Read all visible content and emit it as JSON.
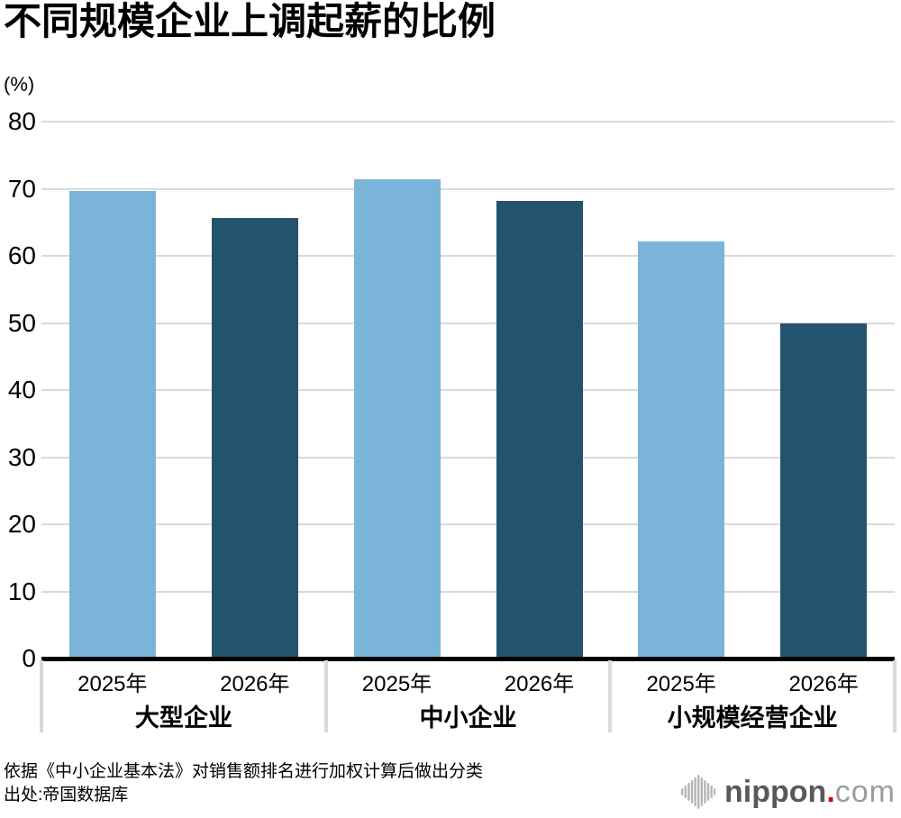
{
  "title": "不同规模企业上调起薪的比例",
  "unit_label": "(%)",
  "chart_data": {
    "type": "bar",
    "title": "不同规模企业上调起薪的比例",
    "ylabel": "(%)",
    "categories": [
      "大型企业",
      "中小企业",
      "小规模经营企业"
    ],
    "series": [
      {
        "name": "2025年",
        "values": [
          69.6,
          71.4,
          62.2
        ],
        "color": "#7ab4d9"
      },
      {
        "name": "2026年",
        "values": [
          65.6,
          68.2,
          50.0
        ],
        "color": "#24536f"
      }
    ],
    "bar_tick_labels": [
      "2025年",
      "2026年"
    ],
    "ylim": [
      0,
      80
    ],
    "ytick_step": 10,
    "yticks": [
      0,
      10,
      20,
      30,
      40,
      50,
      60,
      70,
      80
    ],
    "grid": true,
    "legend_position": "none"
  },
  "footer": {
    "note": "依据《中小企业基本法》对销售额排名进行加权计算后做出分类",
    "source": "出处:帝国数据库"
  },
  "logo": {
    "brand_bold": "nippon",
    "brand_dot": ".",
    "brand_rest": "com",
    "bold_color": "#595959",
    "dot_color": "#dc000c",
    "rest_color": "#9d9d9d",
    "icon_color": "#b5b5b5"
  },
  "colors": {
    "background": "#ffffff",
    "text": "#000000",
    "gridline": "#d9d9d9",
    "baseline": "#000000",
    "divider": "#d9d9d9",
    "bar_2025": "#7ab4d9",
    "bar_2026": "#24536f"
  }
}
